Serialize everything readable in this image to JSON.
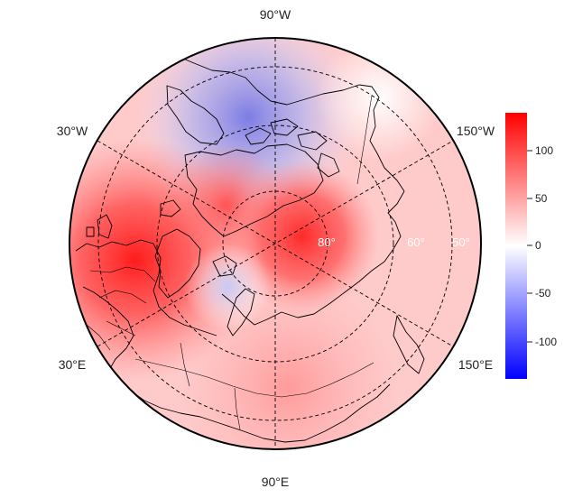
{
  "map": {
    "projection": "north-polar-stereographic",
    "longitude_labels": [
      "90°W",
      "150°W",
      "150°E",
      "90°E",
      "30°E",
      "30°W"
    ],
    "latitude_labels": [
      "80°",
      "60°",
      "50°"
    ]
  },
  "colorbar": {
    "colors": {
      "low": "#0000ff",
      "mid": "#ffffff",
      "high": "#ff0000"
    },
    "range": [
      -135,
      135
    ],
    "ticks": [
      "100",
      "50",
      "0",
      "-50",
      "-100"
    ]
  }
}
